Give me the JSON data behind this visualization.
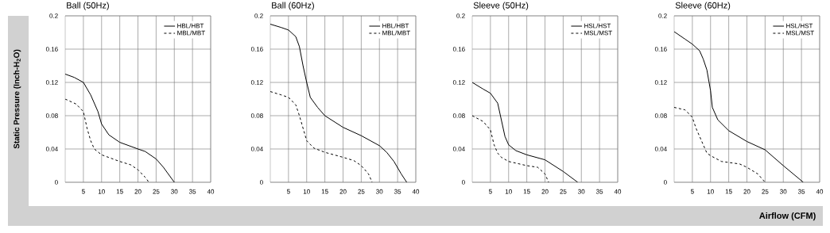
{
  "chart_data": [
    {
      "type": "line",
      "title": "Ball (50Hz)",
      "ylabel": "Static Pressure (Inch-H$_{2}$O)",
      "xlim": [
        0,
        40
      ],
      "ylim": [
        0,
        0.2
      ],
      "xticks": [
        5,
        10,
        15,
        20,
        25,
        30,
        35,
        40
      ],
      "yticks": [
        0,
        0.04,
        0.08,
        0.12,
        0.16,
        0.2
      ],
      "grid": true,
      "legend": "top right",
      "series": [
        {
          "name": "HBL/HBT",
          "color": "#000000",
          "line_style": "solid",
          "x": [
            0,
            2.5,
            5,
            7,
            9,
            10,
            12,
            15,
            20,
            22,
            25,
            27,
            30
          ],
          "values": [
            0.13,
            0.126,
            0.12,
            0.105,
            0.085,
            0.07,
            0.057,
            0.048,
            0.04,
            0.037,
            0.028,
            0.018,
            0
          ]
        },
        {
          "name": "MBL/MBT",
          "color": "#000000",
          "line_style": "dashed",
          "x": [
            0,
            3,
            5,
            6,
            7,
            8,
            10,
            15,
            18,
            20,
            22,
            23
          ],
          "values": [
            0.1,
            0.094,
            0.085,
            0.065,
            0.05,
            0.04,
            0.033,
            0.025,
            0.021,
            0.015,
            0.006,
            0
          ]
        }
      ]
    },
    {
      "type": "line",
      "title": "Ball  (60Hz)",
      "xlim": [
        0,
        40
      ],
      "ylim": [
        0,
        0.2
      ],
      "xticks": [
        5,
        10,
        15,
        20,
        25,
        30,
        35,
        40
      ],
      "yticks": [
        0,
        0.04,
        0.08,
        0.12,
        0.16,
        0.2
      ],
      "grid": true,
      "legend": "top right",
      "series": [
        {
          "name": "HBL/HBT",
          "color": "#000000",
          "line_style": "solid",
          "x": [
            0,
            3,
            5,
            7,
            8,
            9,
            10,
            11,
            13,
            15,
            20,
            25,
            30,
            32,
            34,
            36,
            37.5
          ],
          "values": [
            0.19,
            0.186,
            0.183,
            0.175,
            0.163,
            0.14,
            0.12,
            0.102,
            0.09,
            0.08,
            0.066,
            0.056,
            0.044,
            0.036,
            0.025,
            0.01,
            0
          ]
        },
        {
          "name": "MBL/MBT",
          "color": "#000000",
          "line_style": "dashed",
          "x": [
            0,
            3,
            5,
            7,
            8,
            9,
            10,
            12,
            15,
            20,
            23,
            25,
            27,
            28
          ],
          "values": [
            0.109,
            0.105,
            0.102,
            0.093,
            0.08,
            0.065,
            0.05,
            0.041,
            0.036,
            0.03,
            0.026,
            0.02,
            0.01,
            0
          ]
        }
      ]
    },
    {
      "type": "line",
      "title": "Sleeve (50Hz)",
      "xlim": [
        0,
        40
      ],
      "ylim": [
        0,
        0.2
      ],
      "xticks": [
        5,
        10,
        15,
        20,
        25,
        30,
        35,
        40
      ],
      "yticks": [
        0,
        0.04,
        0.08,
        0.12,
        0.16,
        0.2
      ],
      "grid": true,
      "legend": "top right",
      "series": [
        {
          "name": "HSL/HST",
          "color": "#000000",
          "line_style": "solid",
          "x": [
            0,
            3,
            5,
            7,
            8,
            9,
            10,
            12,
            15,
            20,
            25,
            29
          ],
          "values": [
            0.12,
            0.112,
            0.107,
            0.095,
            0.075,
            0.055,
            0.045,
            0.038,
            0.033,
            0.027,
            0.013,
            0
          ]
        },
        {
          "name": "MSL/MST",
          "color": "#000000",
          "line_style": "dashed",
          "x": [
            0,
            3,
            5,
            6,
            7,
            8,
            10,
            15,
            18,
            20,
            21
          ],
          "values": [
            0.08,
            0.073,
            0.063,
            0.045,
            0.035,
            0.03,
            0.025,
            0.02,
            0.018,
            0.01,
            0
          ]
        }
      ]
    },
    {
      "type": "line",
      "title": "Sleeve (60Hz)",
      "xlabel": "Airflow (CFM)",
      "xlim": [
        0,
        40
      ],
      "ylim": [
        0,
        0.2
      ],
      "xticks": [
        5,
        10,
        15,
        20,
        25,
        30,
        35,
        40
      ],
      "yticks": [
        0,
        0.04,
        0.08,
        0.12,
        0.16,
        0.2
      ],
      "grid": true,
      "legend": "top right",
      "series": [
        {
          "name": "HSL/HST",
          "color": "#000000",
          "line_style": "solid",
          "x": [
            0,
            3,
            5,
            7,
            8,
            9,
            10,
            10.5,
            12,
            15,
            20,
            25,
            30,
            35.5
          ],
          "values": [
            0.181,
            0.172,
            0.166,
            0.158,
            0.148,
            0.135,
            0.11,
            0.09,
            0.075,
            0.062,
            0.049,
            0.039,
            0.02,
            0
          ]
        },
        {
          "name": "MSL/MST",
          "color": "#000000",
          "line_style": "dashed",
          "x": [
            0,
            3,
            5,
            6,
            8,
            9,
            10,
            13,
            18,
            20,
            23,
            25
          ],
          "values": [
            0.09,
            0.087,
            0.078,
            0.065,
            0.045,
            0.035,
            0.032,
            0.025,
            0.022,
            0.018,
            0.01,
            0
          ]
        }
      ]
    }
  ]
}
